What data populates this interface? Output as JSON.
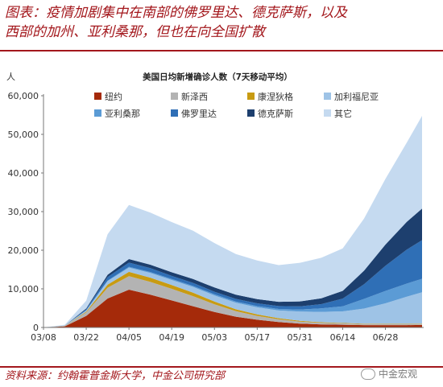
{
  "header": {
    "title_line1": "图表：疫情加剧集中在南部的佛罗里达、德克萨斯，以及",
    "title_line2": "西部的加州、亚利桑那，但也在向全国扩散"
  },
  "footer": {
    "source": "资料来源：约翰霍普金斯大学，中金公司研究部",
    "watermark": "中金宏观"
  },
  "chart_data": {
    "type": "area",
    "stacked": true,
    "title": "美国日均新增确诊人数（7天移动平均）",
    "ylabel": "人",
    "xlabel": "",
    "ylim": [
      0,
      60000
    ],
    "yticks": [
      0,
      10000,
      20000,
      30000,
      40000,
      50000,
      60000
    ],
    "ytick_labels": [
      "0",
      "10,000",
      "20,000",
      "30,000",
      "40,000",
      "50,000",
      "60,000"
    ],
    "xticks": [
      "03/08",
      "03/22",
      "04/05",
      "04/19",
      "05/03",
      "05/17",
      "05/31",
      "06/14",
      "06/28"
    ],
    "grid": false,
    "legend_position": "top",
    "x": [
      "03/08",
      "03/15",
      "03/22",
      "03/29",
      "04/05",
      "04/12",
      "04/19",
      "04/26",
      "05/03",
      "05/10",
      "05/17",
      "05/24",
      "05/31",
      "06/07",
      "06/14",
      "06/21",
      "06/28",
      "07/05",
      "07/10"
    ],
    "series": [
      {
        "name": "纽约",
        "color": "#a52a0a",
        "values": [
          0,
          300,
          3000,
          7500,
          9800,
          8500,
          7000,
          5500,
          4000,
          2800,
          2000,
          1400,
          1000,
          800,
          700,
          600,
          600,
          600,
          650
        ]
      },
      {
        "name": "新泽西",
        "color": "#b3b3b3",
        "values": [
          0,
          100,
          900,
          2800,
          3500,
          3300,
          3000,
          2600,
          2000,
          1400,
          1000,
          700,
          500,
          400,
          350,
          300,
          250,
          250,
          250
        ]
      },
      {
        "name": "康涅狄格",
        "color": "#c89b12",
        "values": [
          0,
          20,
          200,
          800,
          1100,
          1100,
          1000,
          900,
          700,
          500,
          400,
          300,
          200,
          150,
          120,
          100,
          100,
          100,
          100
        ]
      },
      {
        "name": "加利福尼亚",
        "color": "#9ec3e6",
        "values": [
          0,
          30,
          300,
          900,
          1100,
          1200,
          1300,
          1500,
          1600,
          1700,
          1800,
          2000,
          2400,
          2700,
          3000,
          3900,
          5300,
          7000,
          8100
        ]
      },
      {
        "name": "亚利桑那",
        "color": "#5b9bd5",
        "values": [
          0,
          5,
          50,
          150,
          200,
          250,
          250,
          250,
          300,
          300,
          350,
          400,
          550,
          900,
          1300,
          2500,
          3200,
          3400,
          3500
        ]
      },
      {
        "name": "佛罗里达",
        "color": "#2f6fb6",
        "values": [
          0,
          30,
          300,
          900,
          1100,
          1000,
          800,
          800,
          650,
          700,
          700,
          750,
          800,
          1100,
          2000,
          3800,
          6500,
          8800,
          10000
        ]
      },
      {
        "name": "德克萨斯",
        "color": "#1d3f6e",
        "values": [
          0,
          20,
          200,
          600,
          900,
          900,
          950,
          1000,
          1100,
          1100,
          1100,
          1100,
          1300,
          1500,
          2000,
          3500,
          5500,
          7200,
          8200
        ]
      },
      {
        "name": "其它",
        "color": "#c5daf0",
        "values": [
          0,
          200,
          2000,
          10500,
          14000,
          13500,
          13000,
          12500,
          11500,
          10500,
          10000,
          9500,
          10000,
          10500,
          11000,
          13500,
          17000,
          20500,
          24000
        ]
      }
    ]
  }
}
